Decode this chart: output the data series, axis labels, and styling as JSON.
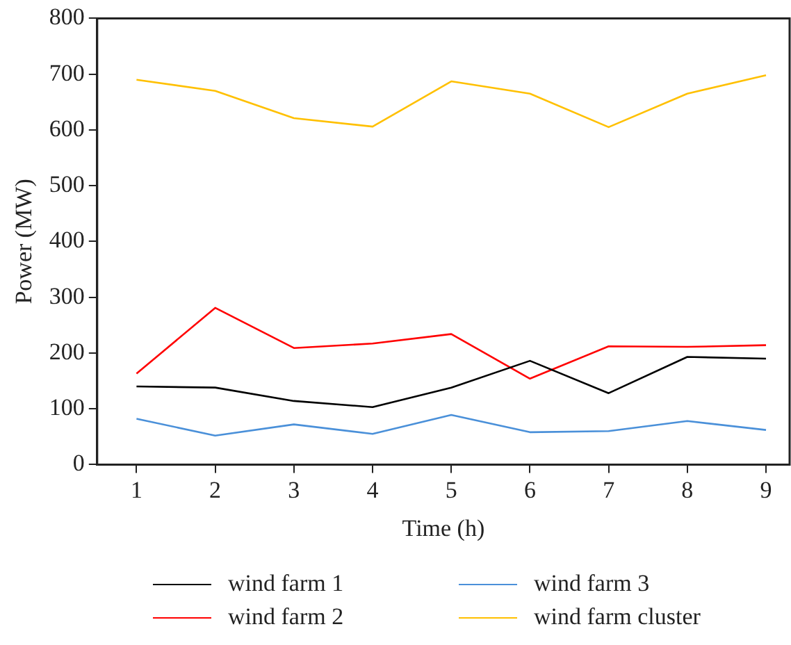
{
  "chart_data": {
    "type": "line",
    "xlabel": "Time (h)",
    "ylabel": "Power (MW)",
    "x": [
      1,
      2,
      3,
      4,
      5,
      6,
      7,
      8,
      9
    ],
    "xlim": [
      0.5,
      9.3
    ],
    "xticks": [
      1,
      2,
      3,
      4,
      5,
      6,
      7,
      8,
      9
    ],
    "ylim": [
      0,
      800
    ],
    "yticks": [
      0,
      100,
      200,
      300,
      400,
      500,
      600,
      700,
      800
    ],
    "grid": false,
    "legend": "bottom",
    "marker": "none",
    "line_style": "solid",
    "series": [
      {
        "name": "wind farm 1",
        "color": "#000000",
        "values": [
          140,
          138,
          114,
          103,
          138,
          186,
          128,
          193,
          190
        ]
      },
      {
        "name": "wind farm 2",
        "color": "#ff0000",
        "values": [
          163,
          281,
          209,
          217,
          234,
          154,
          212,
          211,
          214
        ]
      },
      {
        "name": "wind farm 3",
        "color": "#4a90d9",
        "values": [
          82,
          52,
          72,
          55,
          89,
          58,
          60,
          78,
          62
        ]
      },
      {
        "name": "wind farm cluster",
        "color": "#ffc000",
        "values": [
          690,
          670,
          621,
          606,
          687,
          665,
          605,
          665,
          698
        ]
      }
    ]
  }
}
